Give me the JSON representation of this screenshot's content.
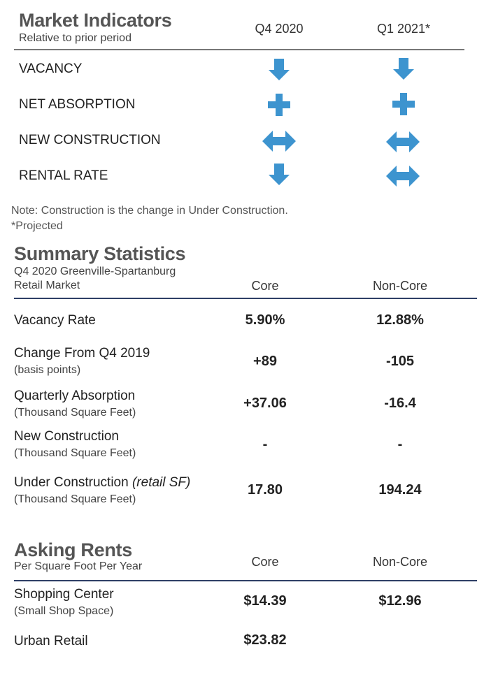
{
  "colors": {
    "accent": "#3d94cf",
    "rule_gray": "#777777",
    "rule_navy": "#2e3f66"
  },
  "market_indicators": {
    "title": "Market Indicators",
    "subtitle": "Relative to prior period",
    "columns": [
      "Q4 2020",
      "Q1 2021*"
    ],
    "rows": [
      {
        "label": "VACANCY",
        "icons": [
          "arrow-down-icon",
          "arrow-down-icon"
        ]
      },
      {
        "label": "NET ABSORPTION",
        "icons": [
          "plus-icon",
          "plus-icon"
        ]
      },
      {
        "label": "NEW CONSTRUCTION",
        "icons": [
          "arrow-left-right-icon",
          "arrow-left-right-icon"
        ]
      },
      {
        "label": "RENTAL RATE",
        "icons": [
          "arrow-down-icon",
          "arrow-left-right-icon"
        ]
      }
    ],
    "note": "Note: Construction is the change in Under Construction.",
    "footnote": "*Projected"
  },
  "summary": {
    "title": "Summary Statistics",
    "subtitle1": "Q4 2020 Greenville-Spartanburg",
    "subtitle2": "Retail Market",
    "columns": [
      "Core",
      "Non-Core"
    ],
    "rows": [
      {
        "label": "Vacancy Rate",
        "sublabel": "",
        "values": [
          "5.90%",
          "12.88%"
        ]
      },
      {
        "label": "Change From Q4 2019",
        "sublabel": "(basis points)",
        "values": [
          "+89",
          "-105"
        ]
      },
      {
        "label": "Quarterly Absorption",
        "sublabel": "(Thousand Square Feet)",
        "values": [
          "+37.06",
          "-16.4"
        ]
      },
      {
        "label": "New Construction",
        "sublabel": "(Thousand Square Feet)",
        "values": [
          "-",
          "-"
        ]
      },
      {
        "label": "Under Construction ",
        "label_italic": "(retail SF)",
        "sublabel": "(Thousand Square Feet)",
        "values": [
          "17.80",
          "194.24"
        ]
      }
    ]
  },
  "rents": {
    "title": "Asking Rents",
    "subtitle": "Per Square Foot Per Year",
    "columns": [
      "Core",
      "Non-Core"
    ],
    "rows": [
      {
        "label": "Shopping Center",
        "sublabel": "(Small Shop Space)",
        "values": [
          "$14.39",
          "$12.96"
        ]
      },
      {
        "label": "Urban Retail",
        "sublabel": "",
        "values": [
          "$23.82",
          ""
        ]
      }
    ]
  }
}
